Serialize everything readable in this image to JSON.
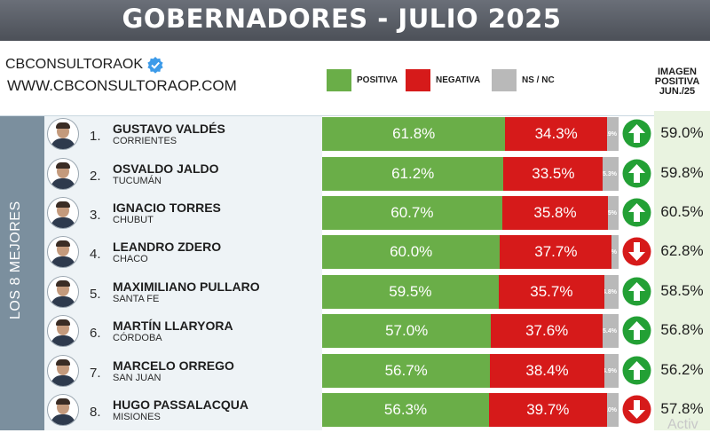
{
  "header": {
    "title": "GOBERNADORES - JULIO 2025"
  },
  "brand": {
    "name": "CBCONSULTORAOK",
    "website": "WWW.CBCONSULTORAOP.COM"
  },
  "legend": [
    {
      "label": "POSITIVA",
      "color": "#6aae48"
    },
    {
      "label": "NEGATIVA",
      "color": "#d61a1a"
    },
    {
      "label": "NS / NC",
      "color": "#b9b9b9"
    }
  ],
  "prior_header": "IMAGEN POSITIVA JUN./25",
  "group_label": "LOS 8 MEJORES",
  "watermark": "Activ",
  "chart_data": {
    "type": "bar",
    "stacked": true,
    "orientation": "horizontal",
    "title": "GOBERNADORES - JULIO 2025",
    "series_names": [
      "POSITIVA",
      "NEGATIVA",
      "NS / NC"
    ],
    "rows": [
      {
        "rank": "1.",
        "name": "GUSTAVO VALDÉS",
        "province": "CORRIENTES",
        "positive": 61.8,
        "negative": 34.3,
        "nsnc": 3.9,
        "positive_label": "61.8%",
        "negative_label": "34.3%",
        "nsnc_label": "3.9%",
        "trend": "up",
        "prior_positive": "59.0%"
      },
      {
        "rank": "2.",
        "name": "OSVALDO JALDO",
        "province": "TUCUMÁN",
        "positive": 61.2,
        "negative": 33.5,
        "nsnc": 5.3,
        "positive_label": "61.2%",
        "negative_label": "33.5%",
        "nsnc_label": "5.3%",
        "trend": "up",
        "prior_positive": "59.8%"
      },
      {
        "rank": "3.",
        "name": "IGNACIO TORRES",
        "province": "CHUBUT",
        "positive": 60.7,
        "negative": 35.8,
        "nsnc": 3.5,
        "positive_label": "60.7%",
        "negative_label": "35.8%",
        "nsnc_label": "3.5%",
        "trend": "up",
        "prior_positive": "60.5%"
      },
      {
        "rank": "4.",
        "name": "LEANDRO ZDERO",
        "province": "CHACO",
        "positive": 60.0,
        "negative": 37.7,
        "nsnc": 2.3,
        "positive_label": "60.0%",
        "negative_label": "37.7%",
        "nsnc_label": "2.3%",
        "trend": "down",
        "prior_positive": "62.8%"
      },
      {
        "rank": "5.",
        "name": "MAXIMILIANO PULLARO",
        "province": "SANTA FE",
        "positive": 59.5,
        "negative": 35.7,
        "nsnc": 4.8,
        "positive_label": "59.5%",
        "negative_label": "35.7%",
        "nsnc_label": "4.8%",
        "trend": "up",
        "prior_positive": "58.5%"
      },
      {
        "rank": "6.",
        "name": "MARTÍN LLARYORA",
        "province": "CÓRDOBA",
        "positive": 57.0,
        "negative": 37.6,
        "nsnc": 5.4,
        "positive_label": "57.0%",
        "negative_label": "37.6%",
        "nsnc_label": "5.4%",
        "trend": "up",
        "prior_positive": "56.8%"
      },
      {
        "rank": "7.",
        "name": "MARCELO ORREGO",
        "province": "SAN JUAN",
        "positive": 56.7,
        "negative": 38.4,
        "nsnc": 4.9,
        "positive_label": "56.7%",
        "negative_label": "38.4%",
        "nsnc_label": "4.9%",
        "trend": "up",
        "prior_positive": "56.2%"
      },
      {
        "rank": "8.",
        "name": "HUGO PASSALACQUA",
        "province": "MISIONES",
        "positive": 56.3,
        "negative": 39.7,
        "nsnc": 4.0,
        "positive_label": "56.3%",
        "negative_label": "39.7%",
        "nsnc_label": "4.0%",
        "trend": "down",
        "prior_positive": "57.8%"
      }
    ]
  }
}
